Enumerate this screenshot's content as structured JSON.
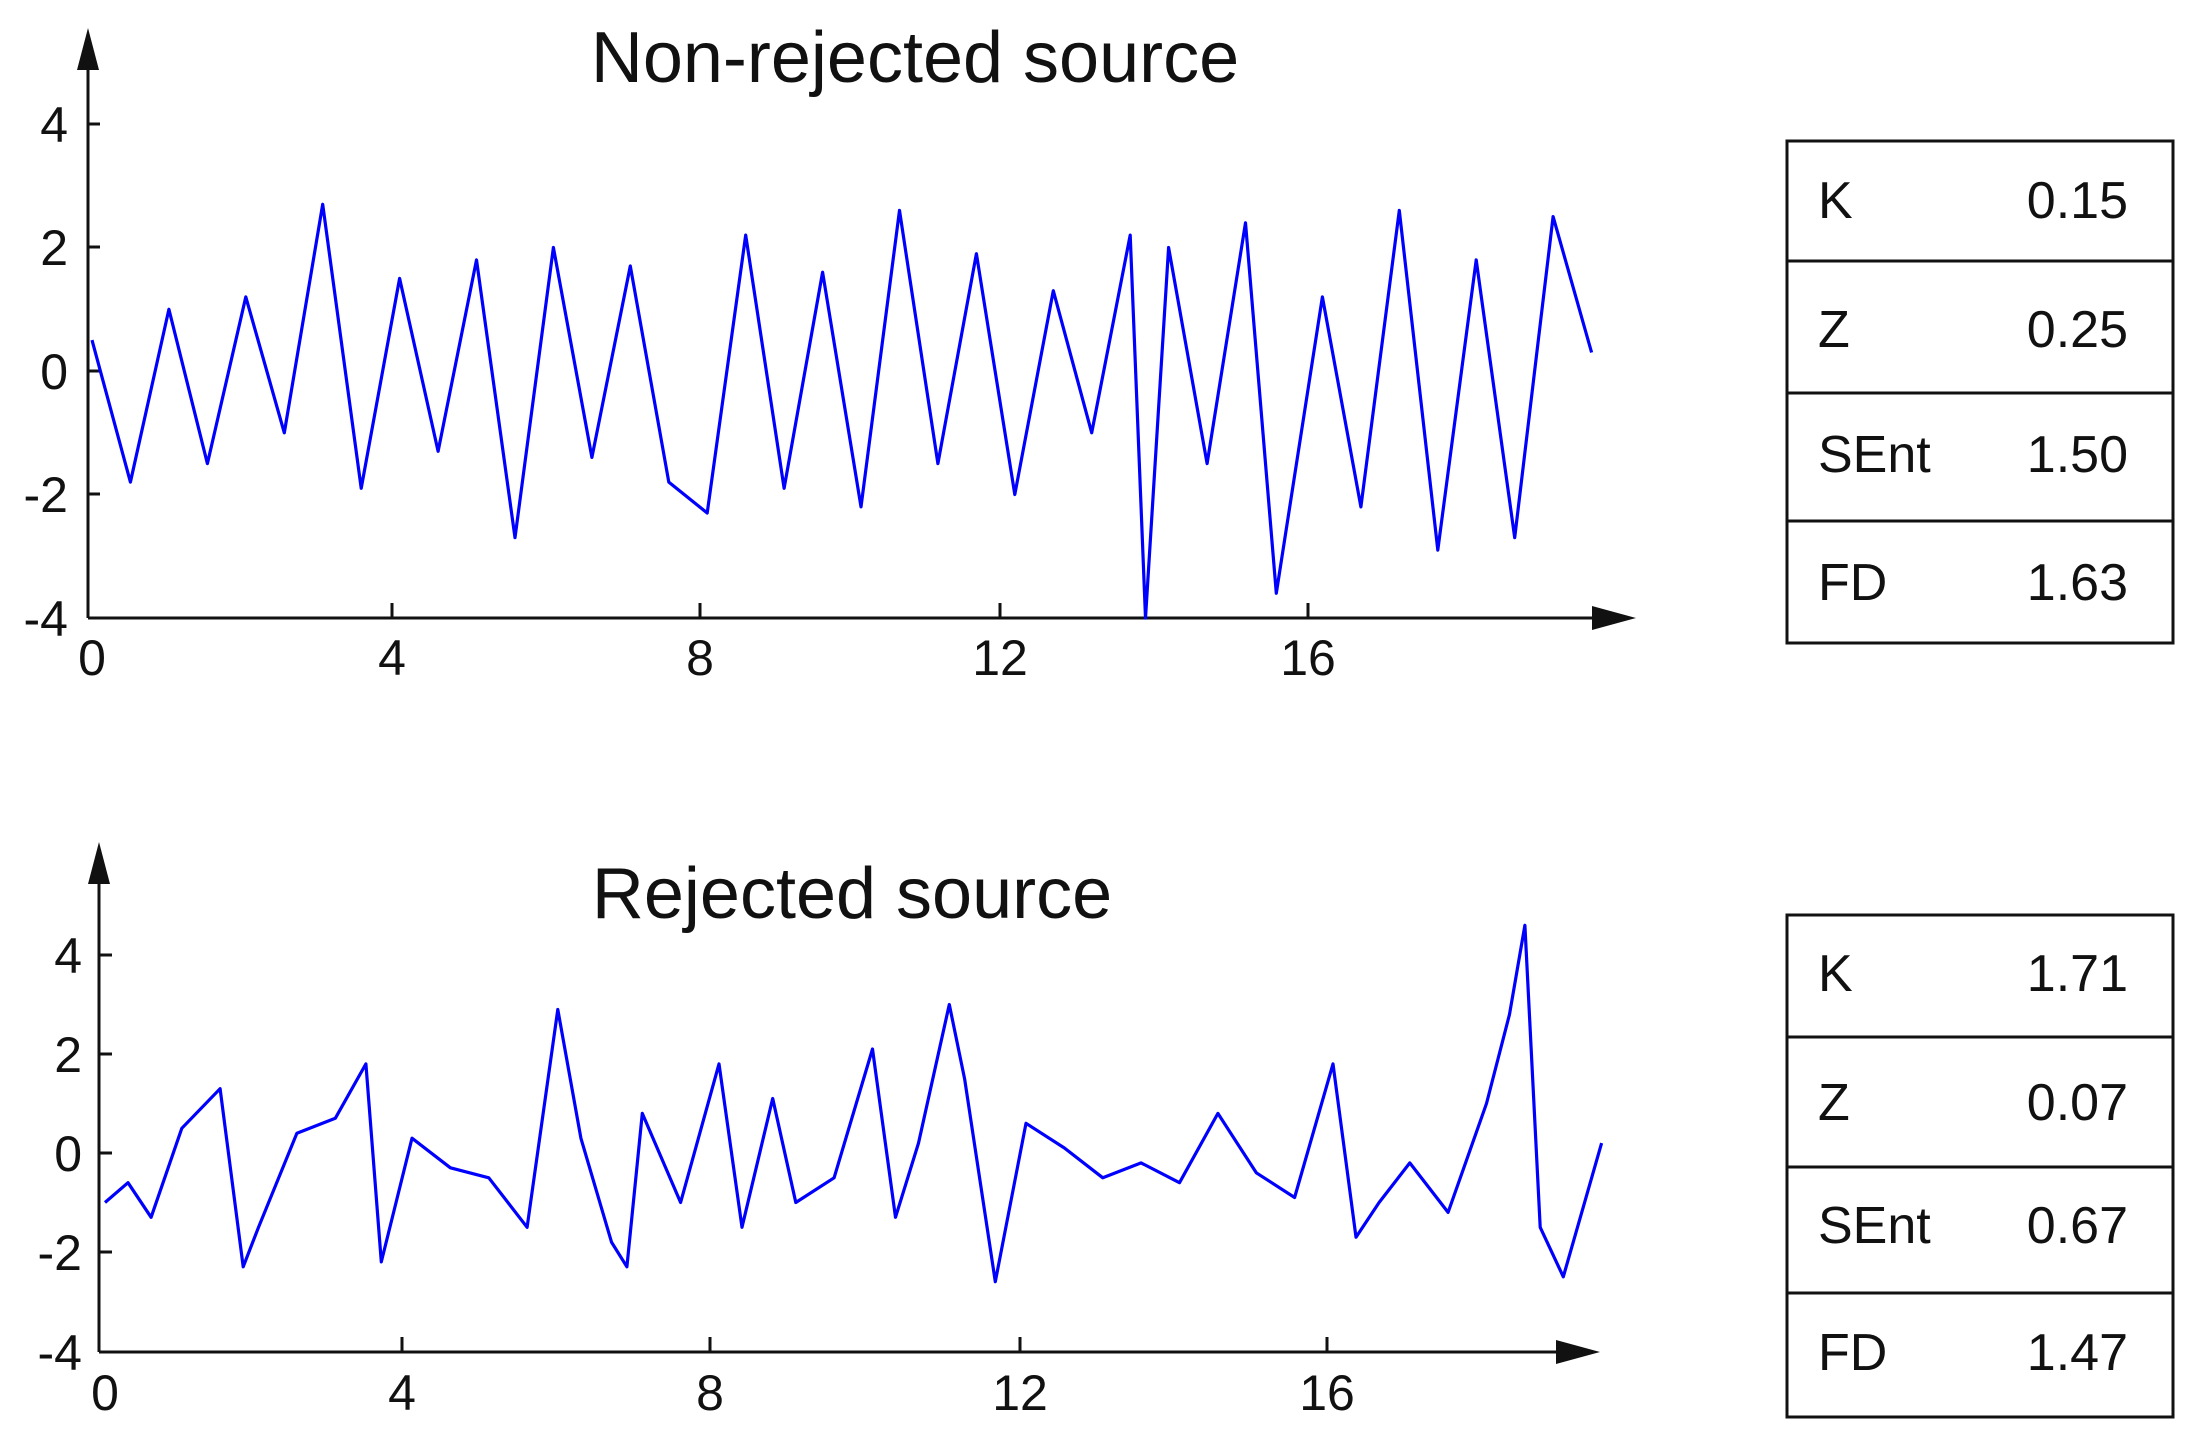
{
  "chart_data": [
    {
      "type": "line",
      "title": "Non-rejected source",
      "xlabel": "",
      "ylabel": "",
      "xlim": [
        0,
        19.5
      ],
      "ylim": [
        -4,
        4.8
      ],
      "x_ticks": [
        "0",
        "4",
        "8",
        "12",
        "16"
      ],
      "y_ticks": [
        "4",
        "2",
        "0",
        "-2",
        "-4"
      ],
      "grid": false,
      "series": [
        {
          "color": "#0000ff",
          "x": [
            0,
            0.5,
            1,
            1.5,
            2,
            2.5,
            3,
            3.5,
            4,
            4.5,
            5,
            5.5,
            6,
            6.5,
            7,
            7.5,
            8,
            8.5,
            9,
            9.5,
            10,
            10.5,
            11,
            11.5,
            12,
            12.5,
            13,
            13.5,
            13.7,
            14,
            14.5,
            15,
            15.4,
            16,
            16.5,
            17,
            17.5,
            18,
            18.5,
            19,
            19.5
          ],
          "y": [
            0.5,
            -1.8,
            1.0,
            -1.5,
            1.2,
            -1.0,
            2.7,
            -1.9,
            1.5,
            -1.3,
            1.8,
            -2.7,
            2.0,
            -1.4,
            1.7,
            -1.8,
            -2.3,
            2.2,
            -1.9,
            1.6,
            -2.2,
            2.6,
            -1.5,
            1.9,
            -2.0,
            1.3,
            -1.0,
            2.2,
            -4.0,
            2.0,
            -1.5,
            2.4,
            -3.6,
            1.2,
            -2.2,
            2.6,
            -2.9,
            1.8,
            -2.7,
            2.5,
            0.3
          ]
        }
      ],
      "table": [
        {
          "label": "K",
          "value": "0.15"
        },
        {
          "label": "Z",
          "value": "0.25"
        },
        {
          "label": "SEnt",
          "value": "1.50"
        },
        {
          "label": "FD",
          "value": "1.63"
        }
      ]
    },
    {
      "type": "line",
      "title": "Rejected source",
      "xlabel": "",
      "ylabel": "",
      "xlim": [
        0,
        19.5
      ],
      "ylim": [
        -4,
        5.4
      ],
      "x_ticks": [
        "0",
        "4",
        "8",
        "12",
        "16"
      ],
      "y_ticks": [
        "4",
        "2",
        "0",
        "-2",
        "-4"
      ],
      "grid": false,
      "series": [
        {
          "color": "#0000ff",
          "x": [
            0,
            0.3,
            0.6,
            1,
            1.5,
            1.8,
            2,
            2.5,
            3,
            3.4,
            3.6,
            4,
            4.5,
            5,
            5.5,
            5.9,
            6.2,
            6.6,
            6.8,
            7,
            7.5,
            8,
            8.3,
            8.7,
            9,
            9.5,
            10,
            10.3,
            10.6,
            11,
            11.2,
            11.6,
            12,
            12.5,
            13,
            13.5,
            14,
            14.5,
            15,
            15.5,
            16,
            16.3,
            16.6,
            17,
            17.5,
            18,
            18.3,
            18.5,
            18.7,
            19,
            19.5
          ],
          "y": [
            -1.0,
            -0.6,
            -1.3,
            0.5,
            1.3,
            -2.3,
            -1.5,
            0.4,
            0.7,
            1.8,
            -2.2,
            0.3,
            -0.3,
            -0.5,
            -1.5,
            2.9,
            0.3,
            -1.8,
            -2.3,
            0.8,
            -1.0,
            1.8,
            -1.5,
            1.1,
            -1.0,
            -0.5,
            2.1,
            -1.3,
            0.2,
            3.0,
            1.5,
            -2.6,
            0.6,
            0.1,
            -0.5,
            -0.2,
            -0.6,
            0.8,
            -0.4,
            -0.9,
            1.8,
            -1.7,
            -1.0,
            -0.2,
            -1.2,
            1.0,
            2.8,
            4.6,
            -1.5,
            -2.5,
            0.2
          ]
        }
      ],
      "table": [
        {
          "label": "K",
          "value": "1.71"
        },
        {
          "label": "Z",
          "value": "0.07"
        },
        {
          "label": "SEnt",
          "value": "0.67"
        },
        {
          "label": "FD",
          "value": "1.47"
        }
      ]
    }
  ]
}
